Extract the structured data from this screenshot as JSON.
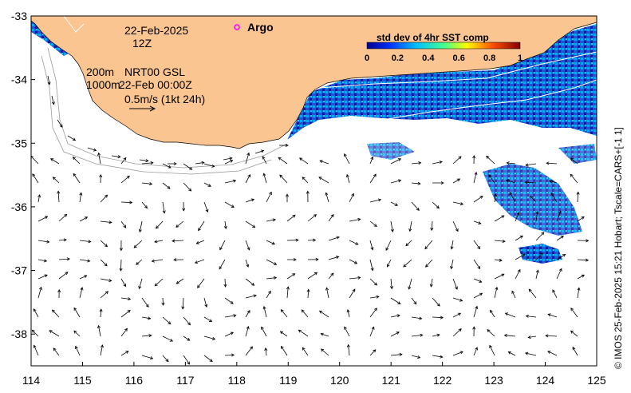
{
  "map": {
    "region": "South-west Western Australia shelf",
    "lon_range": [
      114,
      125
    ],
    "lat_range": [
      -38.5,
      -33
    ],
    "x_ticks": [
      "114",
      "115",
      "116",
      "117",
      "118",
      "119",
      "120",
      "121",
      "122",
      "123",
      "124",
      "125"
    ],
    "y_ticks": [
      "-33",
      "-34",
      "-35",
      "-36",
      "-37",
      "-38"
    ],
    "land_color": "#fbc592",
    "ocean_color": "#ffffff"
  },
  "annotations": {
    "date": "22-Feb-2025",
    "time": "12Z",
    "depth_200": "200m",
    "product": "NRT00 GSL",
    "depth_1000": "1000m",
    "product_time": "22-Feb 00:00Z",
    "scale": "0.5m/s (1kt 24h)"
  },
  "legend": {
    "argo_label": "Argo",
    "argo_color": "#ff00ff"
  },
  "colorbar": {
    "title": "std dev of 4hr SST comp",
    "ticks": [
      "0",
      "0.2",
      "0.4",
      "0.6",
      "0.8",
      "1"
    ],
    "range": [
      0,
      1
    ]
  },
  "footer": {
    "copyright": "© IMOS 25-Feb-2025 15:21 Hobart; Tscale=CARS+[-1 1]"
  }
}
